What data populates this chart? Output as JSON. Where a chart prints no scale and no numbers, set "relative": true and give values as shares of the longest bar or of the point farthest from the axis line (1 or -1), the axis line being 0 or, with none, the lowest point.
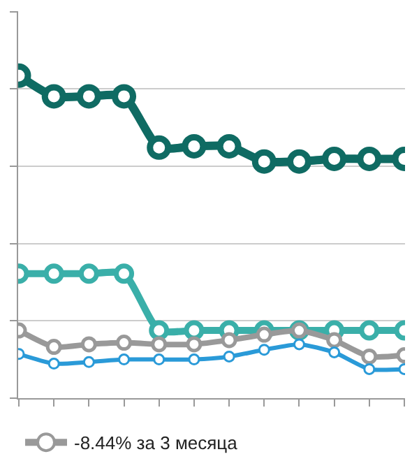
{
  "chart_data": {
    "type": "line",
    "relative": true,
    "categories": [
      null,
      null,
      null,
      null,
      null,
      null,
      null,
      null,
      null,
      null,
      null,
      null
    ],
    "series": [
      {
        "color": "#0f6b63",
        "values": [
          1,
          0.936,
          0.936,
          0.936,
          0.777,
          0.781,
          0.781,
          0.734,
          0.734,
          0.742,
          0.742,
          0.742
        ]
      },
      {
        "color": "#3aafa9",
        "values": [
          0.386,
          0.386,
          0.386,
          0.386,
          0.21,
          0.21,
          0.21,
          0.21,
          0.21,
          0.21,
          0.21,
          0.21
        ]
      },
      {
        "name": "-8.44% за 3 месяца",
        "color": "#999999",
        "values": [
          0.21,
          0.159,
          0.167,
          0.172,
          0.167,
          0.167,
          0.18,
          0.197,
          0.21,
          0.18,
          0.129,
          0.133
        ]
      },
      {
        "color": "#2a9ad8",
        "values": [
          0.137,
          0.107,
          0.112,
          0.12,
          0.12,
          0.12,
          0.129,
          0.15,
          0.167,
          0.142,
          0.09,
          0.09
        ]
      }
    ],
    "marker": "circle",
    "line_style": "solid",
    "grid": "y",
    "legend": "bottom left"
  }
}
